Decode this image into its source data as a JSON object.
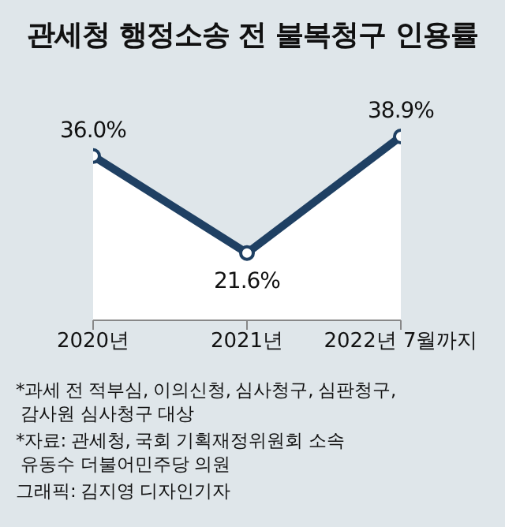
{
  "chart_data": {
    "type": "area",
    "title": "관세청 행정소송 전 불복청구 인용률",
    "categories": [
      "2020년",
      "2021년",
      "2022년 7월까지"
    ],
    "series": [
      {
        "color": "#1f4063",
        "values": [
          36.0,
          21.6,
          38.9
        ],
        "value_labels": [
          "36.0%",
          "21.6%",
          "38.9%"
        ]
      }
    ],
    "marker": "circle",
    "grid": false,
    "legend": false,
    "annotations": [
      "*과세 전 적부심, 이의신청, 심사청구, 심판청구,\n 감사원 심사청구 대상",
      "*자료: 관세청, 국회 기획재정위원회 소속\n 유동수 더불어민주당 의원",
      "그래픽: 김지영 디자인기자"
    ]
  }
}
